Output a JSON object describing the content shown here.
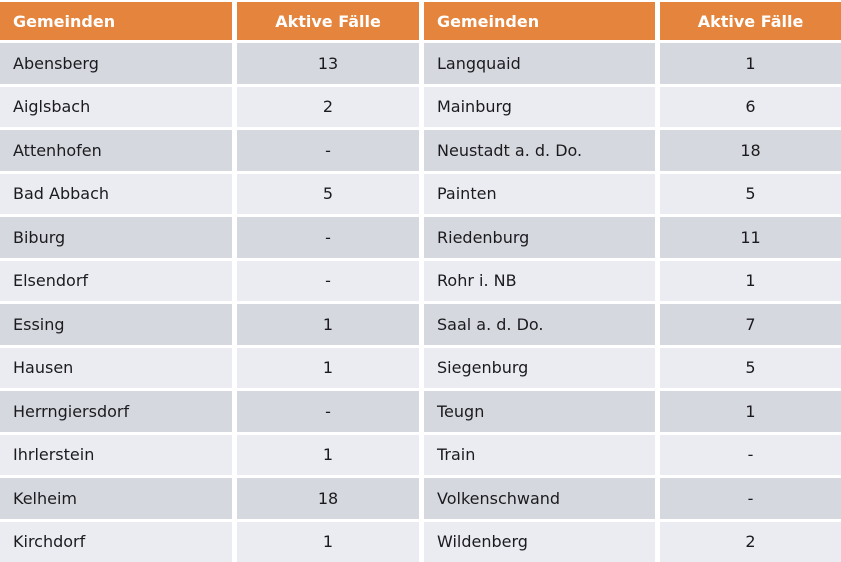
{
  "colors": {
    "accent": "#E5843C",
    "row_odd": "#D6D8E0",
    "row_even": "#EBECF1",
    "header_text": "#FFFFFF",
    "body_text": "#1B1B1F",
    "gutter": "#FFFFFF"
  },
  "tables": [
    {
      "headers": [
        "Gemeinden",
        "Aktive Fälle"
      ],
      "rows": [
        [
          "Abensberg",
          "13"
        ],
        [
          "Aiglsbach",
          "2"
        ],
        [
          "Attenhofen",
          "-"
        ],
        [
          "Bad Abbach",
          "5"
        ],
        [
          "Biburg",
          "-"
        ],
        [
          "Elsendorf",
          "-"
        ],
        [
          "Essing",
          "1"
        ],
        [
          "Hausen",
          "1"
        ],
        [
          "Herrngiersdorf",
          "-"
        ],
        [
          "Ihrlerstein",
          "1"
        ],
        [
          "Kelheim",
          "18"
        ],
        [
          "Kirchdorf",
          "1"
        ]
      ]
    },
    {
      "headers": [
        "Gemeinden",
        "Aktive Fälle"
      ],
      "rows": [
        [
          "Langquaid",
          "1"
        ],
        [
          "Mainburg",
          "6"
        ],
        [
          "Neustadt a. d. Do.",
          "18"
        ],
        [
          "Painten",
          "5"
        ],
        [
          "Riedenburg",
          "11"
        ],
        [
          "Rohr i. NB",
          "1"
        ],
        [
          "Saal a. d. Do.",
          "7"
        ],
        [
          "Siegenburg",
          "5"
        ],
        [
          "Teugn",
          "1"
        ],
        [
          "Train",
          "-"
        ],
        [
          "Volkenschwand",
          "-"
        ],
        [
          "Wildenberg",
          "2"
        ]
      ]
    }
  ],
  "chart_data": {
    "type": "table",
    "title": "",
    "columns": [
      "Gemeinden",
      "Aktive Fälle",
      "Gemeinden",
      "Aktive Fälle"
    ],
    "rows": [
      [
        "Abensberg",
        "13",
        "Langquaid",
        "1"
      ],
      [
        "Aiglsbach",
        "2",
        "Mainburg",
        "6"
      ],
      [
        "Attenhofen",
        "-",
        "Neustadt a. d. Do.",
        "18"
      ],
      [
        "Bad Abbach",
        "5",
        "Painten",
        "5"
      ],
      [
        "Biburg",
        "-",
        "Riedenburg",
        "11"
      ],
      [
        "Elsendorf",
        "-",
        "Rohr i. NB",
        "1"
      ],
      [
        "Essing",
        "1",
        "Saal a. d. Do.",
        "7"
      ],
      [
        "Hausen",
        "1",
        "Siegenburg",
        "5"
      ],
      [
        "Herrngiersdorf",
        "-",
        "Teugn",
        "1"
      ],
      [
        "Ihrlerstein",
        "1",
        "Train",
        "-"
      ],
      [
        "Kelheim",
        "18",
        "Volkenschwand",
        "-"
      ],
      [
        "Kirchdorf",
        "1",
        "Wildenberg",
        "2"
      ]
    ]
  }
}
